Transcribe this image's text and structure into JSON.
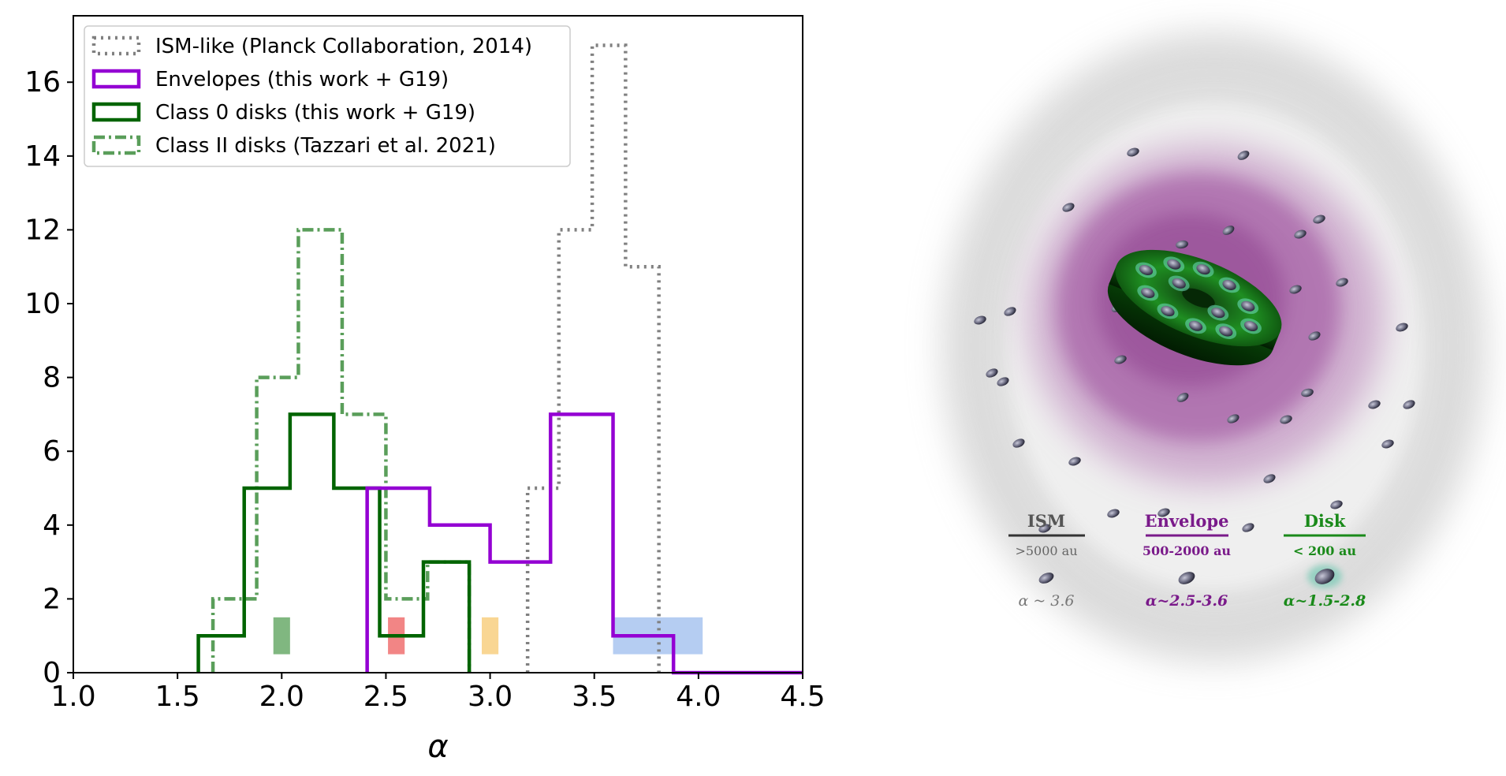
{
  "chart_data": {
    "type": "histogram",
    "xlabel": "α",
    "ylabel": "",
    "xlim": [
      1.0,
      4.5
    ],
    "ylim": [
      0,
      17.8
    ],
    "xticks": [
      "1.0",
      "1.5",
      "2.0",
      "2.5",
      "3.0",
      "3.5",
      "4.0",
      "4.5"
    ],
    "yticks": [
      "0",
      "2",
      "4",
      "6",
      "8",
      "10",
      "12",
      "14",
      "16"
    ],
    "grid": false,
    "legend_position": "top-left",
    "series": [
      {
        "name": "ISM-like (Planck Collaboration, 2014)",
        "color": "#808080",
        "linestyle": "dotted",
        "edges": [
          3.18,
          3.33,
          3.49,
          3.65,
          3.81
        ],
        "counts": [
          5,
          12,
          17,
          11
        ]
      },
      {
        "name": "Envelopes (this work + G19)",
        "color": "#9400D3",
        "linestyle": "solid",
        "edges": [
          2.41,
          2.71,
          3.0,
          3.29,
          3.59,
          3.88,
          4.5
        ],
        "counts": [
          5,
          4,
          3,
          7,
          1,
          0
        ]
      },
      {
        "name": "Class 0 disks (this work + G19)",
        "color": "#006400",
        "linestyle": "solid",
        "edges": [
          1.6,
          1.82,
          2.04,
          2.25,
          2.47,
          2.68,
          2.9
        ],
        "counts": [
          1,
          5,
          7,
          5,
          1,
          3
        ]
      },
      {
        "name": "Class II disks (Tazzari et al. 2021)",
        "color": "#5a9e5a",
        "linestyle": "dashdot",
        "edges": [
          1.67,
          1.88,
          2.08,
          2.29,
          2.5,
          2.7,
          2.9
        ],
        "counts": [
          2,
          8,
          12,
          7,
          2,
          3
        ]
      }
    ],
    "shaded_boxes": [
      {
        "color": "#6aaa6a",
        "x": [
          1.96,
          2.04
        ],
        "y": [
          0.5,
          1.5
        ]
      },
      {
        "color": "#f07070",
        "x": [
          2.51,
          2.59
        ],
        "y": [
          0.5,
          1.5
        ]
      },
      {
        "color": "#f8cf80",
        "x": [
          2.96,
          3.04
        ],
        "y": [
          0.5,
          1.5
        ]
      },
      {
        "color": "#a8c4f0",
        "x": [
          3.59,
          4.02
        ],
        "y": [
          0.5,
          1.5
        ]
      }
    ]
  },
  "illustration": {
    "labels": [
      {
        "title": "ISM",
        "range": ">5000 au",
        "alpha": "α ~ 3.6",
        "color": "#555555"
      },
      {
        "title": "Envelope",
        "range": "500-2000 au",
        "alpha": "α~2.5-3.6",
        "color": "#7a1a8a"
      },
      {
        "title": "Disk",
        "range": "< 200 au",
        "alpha": "α~1.5-2.8",
        "color": "#1a8a1a"
      }
    ]
  }
}
